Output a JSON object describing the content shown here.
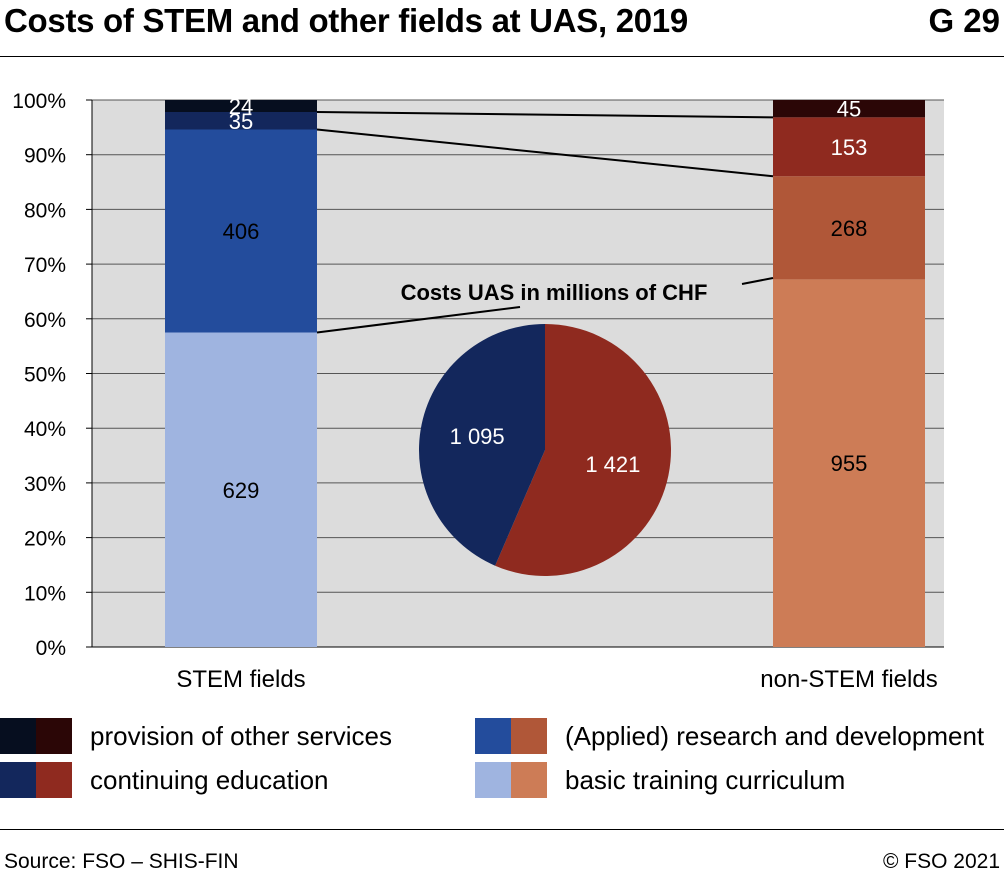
{
  "header": {
    "title": "Costs of STEM and other fields at UAS, 2019",
    "graph_number": "G 29"
  },
  "footer": {
    "source": "Source: FSO – SHIS-FIN",
    "copyright": "© FSO 2021"
  },
  "colors": {
    "plot_background": "#dcdcdc",
    "stem": {
      "basic": "#9fb4e0",
      "research": "#234c9c",
      "continuing": "#13275c",
      "other": "#060e1f"
    },
    "non_stem": {
      "basic": "#cd7c56",
      "research": "#b05738",
      "continuing": "#8f2a1f",
      "other": "#2b0606"
    }
  },
  "legend": [
    {
      "label": "provision of other services",
      "colors": [
        "#060e1f",
        "#2b0606"
      ]
    },
    {
      "label": "(Applied) research and development",
      "colors": [
        "#234c9c",
        "#b05738"
      ]
    },
    {
      "label": "continuing education",
      "colors": [
        "#13275c",
        "#8f2a1f"
      ]
    },
    {
      "label": "basic training curriculum",
      "colors": [
        "#9fb4e0",
        "#cd7c56"
      ]
    }
  ],
  "chart_data": [
    {
      "type": "bar",
      "stacked": true,
      "normalized": true,
      "categories": [
        "STEM fields",
        "non-STEM fields"
      ],
      "series": [
        {
          "name": "basic training curriculum",
          "values": [
            629,
            955
          ],
          "labels": [
            "629",
            "955"
          ]
        },
        {
          "name": "(Applied) research and development",
          "values": [
            406,
            268
          ],
          "labels": [
            "406",
            "268"
          ]
        },
        {
          "name": "continuing education",
          "values": [
            35,
            153
          ],
          "labels": [
            "35",
            "153"
          ]
        },
        {
          "name": "provision of other services",
          "values": [
            24,
            45
          ],
          "labels": [
            "24",
            "45"
          ]
        }
      ],
      "y_ticks": [
        "0%",
        "10%",
        "20%",
        "30%",
        "40%",
        "50%",
        "60%",
        "70%",
        "80%",
        "90%",
        "100%"
      ],
      "ylim": [
        0,
        100
      ],
      "grid": true,
      "legend_position": "bottom"
    },
    {
      "type": "pie",
      "title": "Costs UAS in millions of CHF",
      "categories": [
        "STEM fields",
        "non-STEM fields"
      ],
      "values": [
        1095,
        1421
      ],
      "labels": [
        "1 095",
        "1 421"
      ]
    }
  ]
}
